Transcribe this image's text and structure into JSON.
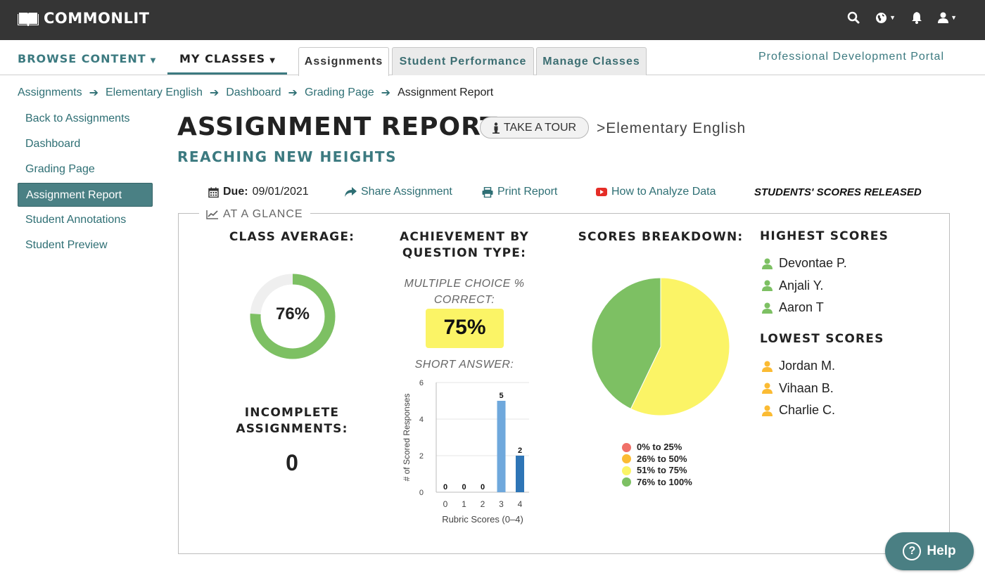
{
  "app": {
    "logo_text": "COMMONLIT"
  },
  "colors": {
    "topbar": "#353535",
    "teal": "#3c7a80",
    "highlight": "#fbf466",
    "green": "#7dc063",
    "yellow": "#fbf466",
    "orange": "#fbbb33",
    "red": "#f07068",
    "bar_light": "#6fa8dc",
    "bar_dark": "#2e75b6"
  },
  "topbar_icons": [
    "search-icon",
    "globe-icon",
    "bell-icon",
    "user-icon"
  ],
  "nav": {
    "browse": "BROWSE CONTENT",
    "my_classes": "MY CLASSES",
    "tabs": [
      "Assignments",
      "Student Performance",
      "Manage Classes"
    ],
    "pd_portal": "Professional Development Portal"
  },
  "breadcrumb": [
    "Assignments",
    "Elementary English",
    "Dashboard",
    "Grading Page",
    "Assignment Report"
  ],
  "sidebar": {
    "items": [
      "Back to Assignments",
      "Dashboard",
      "Grading Page",
      "Assignment Report",
      "Student Annotations",
      "Student Preview"
    ],
    "active_index": 3
  },
  "header": {
    "title": "ASSIGNMENT REPORT",
    "tour": "TAKE A TOUR",
    "class_name": ">Elementary English",
    "subtitle": "REACHING NEW HEIGHTS"
  },
  "meta": {
    "due_label": "Due:",
    "due_date": "09/01/2021",
    "share": "Share Assignment",
    "print": "Print Report",
    "analyze": "How to Analyze Data",
    "released": "STUDENTS' SCORES RELEASED"
  },
  "glance": {
    "legend": "AT A GLANCE",
    "class_avg_title": "CLASS AVERAGE:",
    "class_avg_label": "76%",
    "class_avg_value": 76,
    "incomplete_title_1": "INCOMPLETE",
    "incomplete_title_2": "ASSIGNMENTS:",
    "incomplete_value": "0",
    "achievement_title_1": "ACHIEVEMENT BY",
    "achievement_title_2": "QUESTION TYPE:",
    "mc_label_1": "MULTIPLE CHOICE %",
    "mc_label_2": "CORRECT:",
    "mc_value": "75%",
    "sa_label": "SHORT ANSWER:",
    "breakdown_title": "SCORES BREAKDOWN:",
    "highest_title": "HIGHEST SCORES",
    "highest": [
      "Devontae P.",
      "Anjali Y.",
      "Aaron T"
    ],
    "lowest_title": "LOWEST SCORES",
    "lowest": [
      "Jordan M.",
      "Vihaan B.",
      "Charlie C."
    ]
  },
  "chart_data": [
    {
      "type": "bar",
      "categories": [
        "0",
        "1",
        "2",
        "3",
        "4"
      ],
      "values": [
        0,
        0,
        0,
        5,
        2
      ],
      "xlabel": "Rubric Scores (0–4)",
      "ylabel": "# of Scored Responses",
      "ylim": [
        0,
        6
      ],
      "yticks": [
        "0",
        "2",
        "4",
        "6"
      ],
      "data_labels": [
        "0",
        "0",
        "0",
        "5",
        "2"
      ]
    },
    {
      "type": "pie",
      "categories": [
        "0% to 25%",
        "26% to 50%",
        "51% to 75%",
        "76% to 100%"
      ],
      "values": [
        0,
        0,
        4,
        3
      ],
      "colors": [
        "#f07068",
        "#fbbb33",
        "#fbf466",
        "#7dc063"
      ],
      "legend": "bottom"
    }
  ],
  "help": {
    "label": "Help"
  }
}
